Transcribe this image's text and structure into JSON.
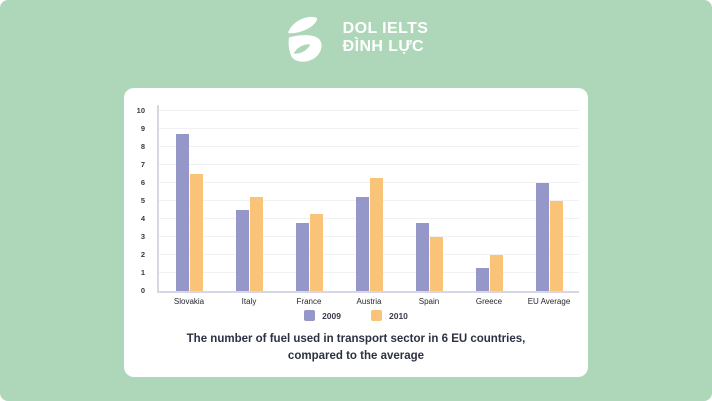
{
  "colors": {
    "page_bg": "#aed7ba",
    "card_bg": "#ffffff",
    "series_2009": "#9697c9",
    "series_2010": "#f9c478",
    "axis": "#d6d6e6",
    "gridline": "#f0f0f5",
    "title_text": "#2d3142",
    "logo_text": "#ffffff"
  },
  "logo": {
    "icon": "dol-swan-leaf-logo",
    "line1": "DOL IELTS",
    "line2": "ĐÌNH LỰC"
  },
  "chart_data": {
    "type": "bar",
    "categories": [
      "Slovakia",
      "Italy",
      "France",
      "Austria",
      "Spain",
      "Greece",
      "EU Average"
    ],
    "series": [
      {
        "name": "2009",
        "color": "#9697c9",
        "values": [
          8.7,
          4.5,
          3.8,
          5.2,
          3.8,
          1.3,
          6.0
        ]
      },
      {
        "name": "2010",
        "color": "#f9c478",
        "values": [
          6.5,
          5.2,
          4.3,
          6.3,
          3.0,
          2.0,
          5.0
        ]
      }
    ],
    "title": "The number of fuel used in transport sector in 6 EU countries, compared to the average",
    "xlabel": "",
    "ylabel": "",
    "ylim": [
      0,
      10
    ],
    "ytick_step": 1,
    "grid": true,
    "legend_position": "bottom"
  },
  "caption": {
    "line1": "The number of fuel used in transport sector in 6 EU countries,",
    "line2": "compared to the average"
  }
}
